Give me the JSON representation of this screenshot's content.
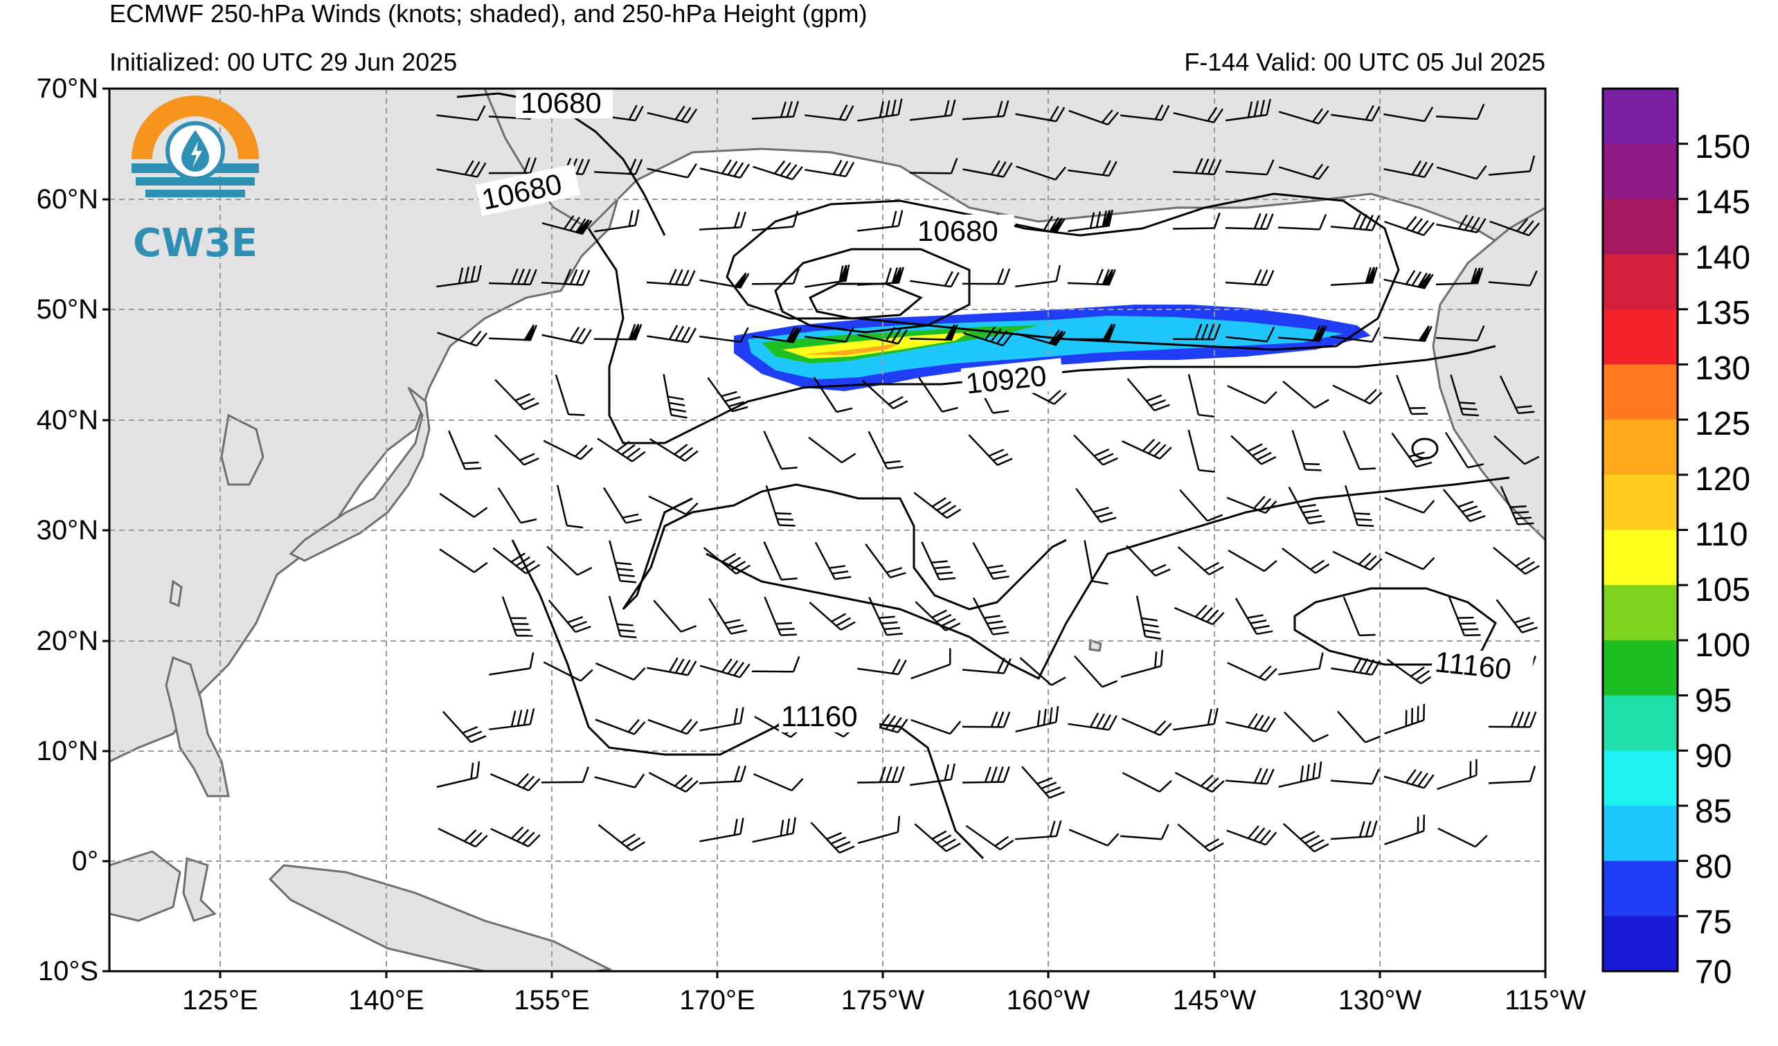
{
  "header": {
    "title": "ECMWF 250-hPa Winds (knots; shaded), and 250-hPa Height (gpm)",
    "initialized": "Initialized: 00 UTC 29 Jun 2025",
    "valid": "F-144  Valid: 00 UTC 05 Jul 2025"
  },
  "logo": {
    "text": "CW3E",
    "colors": {
      "sun": "#f7941d",
      "water": "#2e8fb5"
    }
  },
  "map": {
    "lat_labels": [
      "70°N",
      "60°N",
      "50°N",
      "40°N",
      "30°N",
      "20°N",
      "10°N",
      "0°",
      "10°S"
    ],
    "lon_labels": [
      "125°E",
      "140°E",
      "155°E",
      "170°E",
      "175°W",
      "160°W",
      "145°W",
      "130°W",
      "115°W"
    ],
    "contour_labels": [
      "10680",
      "10680",
      "10680",
      "10920",
      "11160",
      "11160"
    ],
    "colors": {
      "land": "#e3e3e3",
      "coast": "#6e6e6e",
      "grid": "#9a9a9a",
      "contour": "#000000"
    }
  },
  "colorbar": {
    "ticks": [
      "150",
      "145",
      "140",
      "135",
      "130",
      "125",
      "120",
      "110",
      "105",
      "100",
      "95",
      "90",
      "85",
      "80",
      "75",
      "70"
    ],
    "colors": [
      "#7a1fa2",
      "#8e1a84",
      "#a8185f",
      "#d11f3d",
      "#f4222a",
      "#ff7a1e",
      "#ffa91c",
      "#ffcc1f",
      "#ffff1e",
      "#7ed321",
      "#1fbf24",
      "#1fe0a8",
      "#1ff0f0",
      "#1fc7ff",
      "#1f3df5",
      "#1a1ad6"
    ]
  }
}
